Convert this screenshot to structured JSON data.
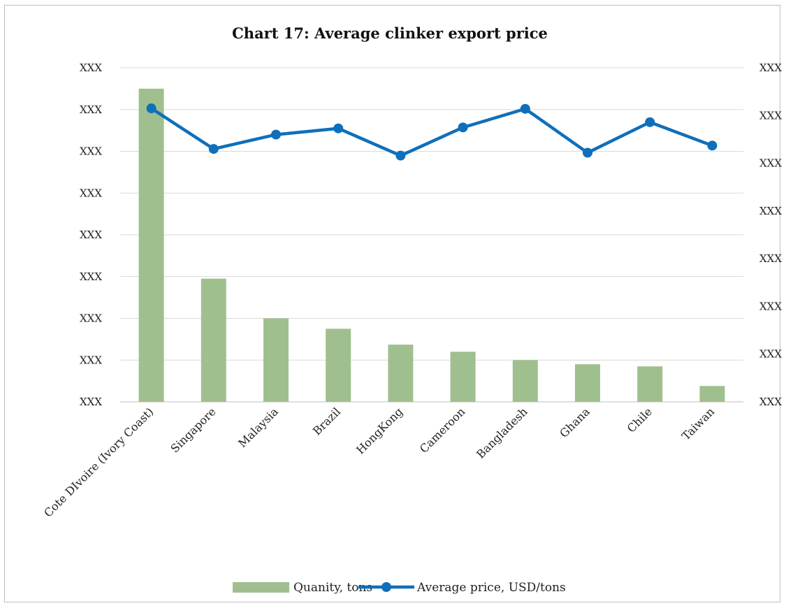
{
  "chart_data": {
    "type": "bar",
    "title": "Chart 17: Average clinker export price",
    "categories": [
      "Cote DIvoire (Ivory Coast)",
      "Singapore",
      "Malaysia",
      "Brazil",
      "HongKong",
      "Cameroon",
      "Bangladesh",
      "Ghana",
      "Chile",
      "Taiwan"
    ],
    "left_axis": {
      "tick_labels": [
        "XXX",
        "XXX",
        "XXX",
        "XXX",
        "XXX",
        "XXX",
        "XXX",
        "XXX",
        "XXX"
      ],
      "ylim": [
        0,
        8
      ]
    },
    "right_axis": {
      "tick_labels": [
        "XXX",
        "XXX",
        "XXX",
        "XXX",
        "XXX",
        "XXX",
        "XXX",
        "XXX"
      ],
      "ylim": [
        0,
        7
      ]
    },
    "grid": true,
    "legend_position": "bottom",
    "series": [
      {
        "name": "Quanity, tons",
        "type": "bar",
        "axis": "left",
        "color": "#9fc08e",
        "values": [
          7.5,
          2.95,
          2.0,
          1.75,
          1.37,
          1.2,
          1.0,
          0.9,
          0.85,
          0.38
        ]
      },
      {
        "name": "Average price, USD/tons",
        "type": "line",
        "axis": "right",
        "color": "#0f6fba",
        "values": [
          6.15,
          5.3,
          5.6,
          5.73,
          5.16,
          5.75,
          6.14,
          5.22,
          5.86,
          5.37
        ]
      }
    ]
  }
}
